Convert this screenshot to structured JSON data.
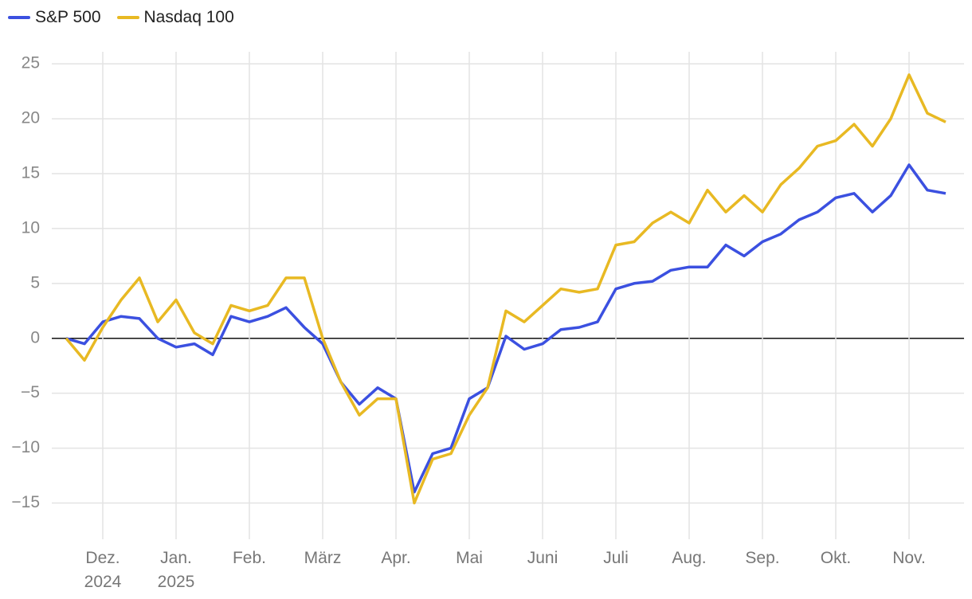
{
  "chart_data": {
    "type": "line",
    "categories": [
      null,
      null,
      "Dez. 2024",
      null,
      null,
      null,
      "Jan. 2025",
      null,
      null,
      null,
      "Feb.",
      null,
      null,
      null,
      "März",
      null,
      null,
      null,
      "Apr.",
      null,
      null,
      null,
      "Mai",
      null,
      null,
      null,
      "Juni",
      null,
      null,
      null,
      "Juli",
      null,
      null,
      null,
      "Aug.",
      null,
      null,
      null,
      "Sep.",
      null,
      null,
      null,
      "Okt.",
      null,
      null,
      null,
      "Nov.",
      null,
      null
    ],
    "series": [
      {
        "name": "S&P 500",
        "color": "#3b50e0",
        "values": [
          0,
          -0.5,
          1.5,
          2,
          1.8,
          0,
          -0.8,
          -0.5,
          -1.5,
          2,
          1.5,
          2,
          2.8,
          1.0,
          -0.5,
          -4,
          -6,
          -4.5,
          -5.5,
          -14,
          -10.5,
          -10,
          -5.5,
          -4.5,
          0.2,
          -1,
          -0.5,
          0.8,
          1,
          1.5,
          4.5,
          5,
          5.2,
          6.2,
          6.5,
          6.5,
          8.5,
          7.5,
          8.8,
          9.5,
          10.8,
          11.5,
          12.8,
          13.2,
          11.5,
          13.0,
          15.8,
          13.5,
          13.2
        ]
      },
      {
        "name": "Nasdaq 100",
        "color": "#e8b923",
        "values": [
          0,
          -2,
          1.0,
          3.5,
          5.5,
          1.5,
          3.5,
          0.5,
          -0.5,
          3,
          2.5,
          3,
          5.5,
          5.5,
          0,
          -4,
          -7,
          -5.5,
          -5.5,
          -15,
          -11,
          -10.5,
          -7,
          -4.5,
          2.5,
          1.5,
          3,
          4.5,
          4.2,
          4.5,
          8.5,
          8.8,
          10.5,
          11.5,
          10.5,
          13.5,
          11.5,
          13,
          11.5,
          14,
          15.5,
          17.5,
          18,
          19.5,
          17.5,
          20,
          24,
          20.5,
          19.7
        ]
      }
    ],
    "ylim": [
      -18.3,
      26.1
    ],
    "yticks": [
      {
        "value": -15,
        "label": "−15"
      },
      {
        "value": -10,
        "label": "−10"
      },
      {
        "value": -5,
        "label": "−5"
      },
      0,
      5,
      10,
      15,
      20,
      25
    ],
    "grid": true,
    "legend": "top-left"
  }
}
